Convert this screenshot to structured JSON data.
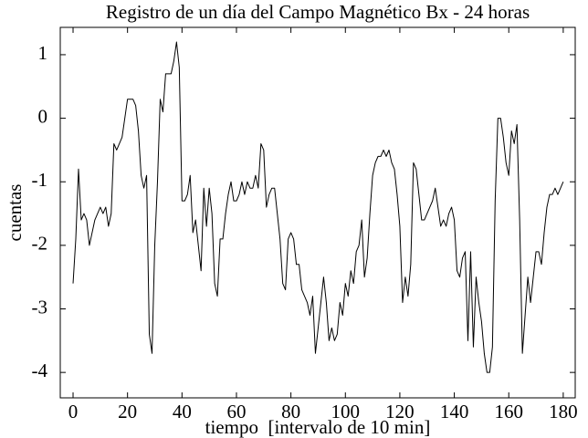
{
  "chart_data": {
    "type": "line",
    "title": "Registro de un día del Campo Magnético Bx - 24 horas",
    "xlabel": "tiempo  [intervalo de 10 min]",
    "ylabel": "cuentas",
    "xlim": [
      -4.7,
      184.4
    ],
    "ylim": [
      -4.4,
      1.43
    ],
    "xticks": [
      0,
      20,
      40,
      60,
      80,
      100,
      120,
      140,
      160,
      180
    ],
    "yticks": [
      1,
      0,
      -1,
      -2,
      -3,
      -4
    ],
    "grid": false,
    "series": [
      {
        "name": "Bx",
        "color": "#000000",
        "x": [
          0,
          1,
          2,
          3,
          4,
          5,
          6,
          7,
          8,
          9,
          10,
          11,
          12,
          13,
          14,
          15,
          16,
          17,
          18,
          19,
          20,
          21,
          22,
          23,
          24,
          25,
          26,
          27,
          28,
          29,
          30,
          31,
          32,
          33,
          34,
          35,
          36,
          37,
          38,
          39,
          40,
          41,
          42,
          43,
          44,
          45,
          46,
          47,
          48,
          49,
          50,
          51,
          52,
          53,
          54,
          55,
          56,
          57,
          58,
          59,
          60,
          61,
          62,
          63,
          64,
          65,
          66,
          67,
          68,
          69,
          70,
          71,
          72,
          73,
          74,
          75,
          76,
          77,
          78,
          79,
          80,
          81,
          82,
          83,
          84,
          85,
          86,
          87,
          88,
          89,
          90,
          91,
          92,
          93,
          94,
          95,
          96,
          97,
          98,
          99,
          100,
          101,
          102,
          103,
          104,
          105,
          106,
          107,
          108,
          109,
          110,
          111,
          112,
          113,
          114,
          115,
          116,
          117,
          118,
          119,
          120,
          121,
          122,
          123,
          124,
          125,
          126,
          127,
          128,
          129,
          130,
          131,
          132,
          133,
          134,
          135,
          136,
          137,
          138,
          139,
          140,
          141,
          142,
          143,
          144,
          145,
          146,
          147,
          148,
          149,
          150,
          151,
          152,
          153,
          154,
          155,
          156,
          157,
          158,
          159,
          160,
          161,
          162,
          163,
          164,
          165,
          166,
          167,
          168,
          169,
          170,
          171,
          172,
          173,
          174,
          175,
          176,
          177,
          178,
          179,
          180
        ],
        "values": [
          -2.6,
          -1.9,
          -0.8,
          -1.6,
          -1.5,
          -1.6,
          -2.0,
          -1.8,
          -1.6,
          -1.5,
          -1.4,
          -1.5,
          -1.4,
          -1.7,
          -1.5,
          -0.4,
          -0.5,
          -0.4,
          -0.3,
          0.0,
          0.3,
          0.3,
          0.3,
          0.2,
          -0.2,
          -0.9,
          -1.1,
          -0.9,
          -3.4,
          -3.7,
          -2.0,
          -1.0,
          0.3,
          0.1,
          0.7,
          0.7,
          0.7,
          0.9,
          1.2,
          0.8,
          -1.3,
          -1.3,
          -1.2,
          -0.9,
          -1.8,
          -1.6,
          -2.0,
          -2.4,
          -1.1,
          -1.7,
          -1.1,
          -1.5,
          -2.6,
          -2.8,
          -1.9,
          -1.9,
          -1.5,
          -1.2,
          -1.0,
          -1.3,
          -1.3,
          -1.2,
          -1.0,
          -1.2,
          -1.0,
          -1.1,
          -1.1,
          -0.9,
          -1.1,
          -0.4,
          -0.5,
          -1.4,
          -1.2,
          -1.1,
          -1.1,
          -1.5,
          -1.9,
          -2.6,
          -2.7,
          -1.9,
          -1.8,
          -1.9,
          -2.3,
          -2.3,
          -2.7,
          -2.8,
          -2.9,
          -3.1,
          -2.8,
          -3.7,
          -3.3,
          -2.9,
          -2.5,
          -2.9,
          -3.5,
          -3.3,
          -3.5,
          -3.4,
          -2.9,
          -3.1,
          -2.6,
          -2.8,
          -2.4,
          -2.6,
          -2.1,
          -2.0,
          -1.6,
          -2.5,
          -2.2,
          -1.5,
          -0.9,
          -0.7,
          -0.6,
          -0.6,
          -0.5,
          -0.6,
          -0.5,
          -0.7,
          -0.8,
          -1.2,
          -1.7,
          -2.9,
          -2.5,
          -2.8,
          -2.3,
          -0.7,
          -0.8,
          -1.2,
          -1.6,
          -1.6,
          -1.5,
          -1.4,
          -1.3,
          -1.1,
          -1.4,
          -1.7,
          -1.6,
          -1.7,
          -1.5,
          -1.4,
          -1.6,
          -2.4,
          -2.5,
          -2.2,
          -2.1,
          -3.5,
          -2.1,
          -3.6,
          -2.5,
          -2.9,
          -3.2,
          -3.7,
          -4.0,
          -4.0,
          -3.6,
          -1.3,
          0.0,
          0.0,
          -0.3,
          -0.7,
          -0.9,
          -0.2,
          -0.4,
          -0.1,
          -1.6,
          -3.7,
          -3.1,
          -2.5,
          -2.9,
          -2.5,
          -2.1,
          -2.1,
          -2.3,
          -1.8,
          -1.4,
          -1.2,
          -1.2,
          -1.1,
          -1.2,
          -1.1,
          -1.0
        ]
      }
    ]
  }
}
